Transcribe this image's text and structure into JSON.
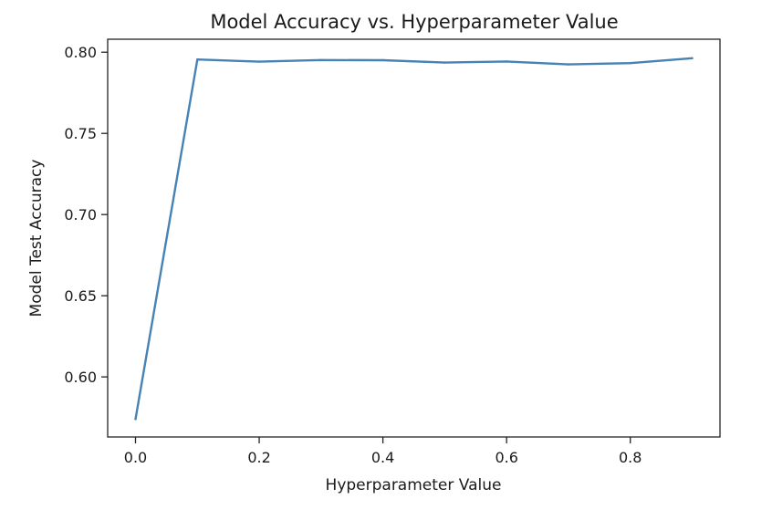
{
  "chart_data": {
    "type": "line",
    "title": "Model Accuracy vs. Hyperparameter Value",
    "xlabel": "Hyperparameter Value",
    "ylabel": "Model Test Accuracy",
    "xlim": [
      -0.045,
      0.945
    ],
    "ylim": [
      0.563,
      0.808
    ],
    "x_ticks": [
      0.0,
      0.2,
      0.4,
      0.6,
      0.8
    ],
    "x_tick_labels": [
      "0.0",
      "0.2",
      "0.4",
      "0.6",
      "0.8"
    ],
    "y_ticks": [
      0.6,
      0.65,
      0.7,
      0.75,
      0.8
    ],
    "y_tick_labels": [
      "0.60",
      "0.65",
      "0.70",
      "0.75",
      "0.80"
    ],
    "grid": false,
    "legend": "none",
    "series": [
      {
        "color": "#4682b4",
        "x": [
          0.0,
          0.1,
          0.2,
          0.3,
          0.4,
          0.5,
          0.6,
          0.7,
          0.8,
          0.9
        ],
        "y": [
          0.574,
          0.7955,
          0.7942,
          0.7952,
          0.7951,
          0.7936,
          0.7943,
          0.7925,
          0.7933,
          0.7963
        ]
      }
    ]
  }
}
